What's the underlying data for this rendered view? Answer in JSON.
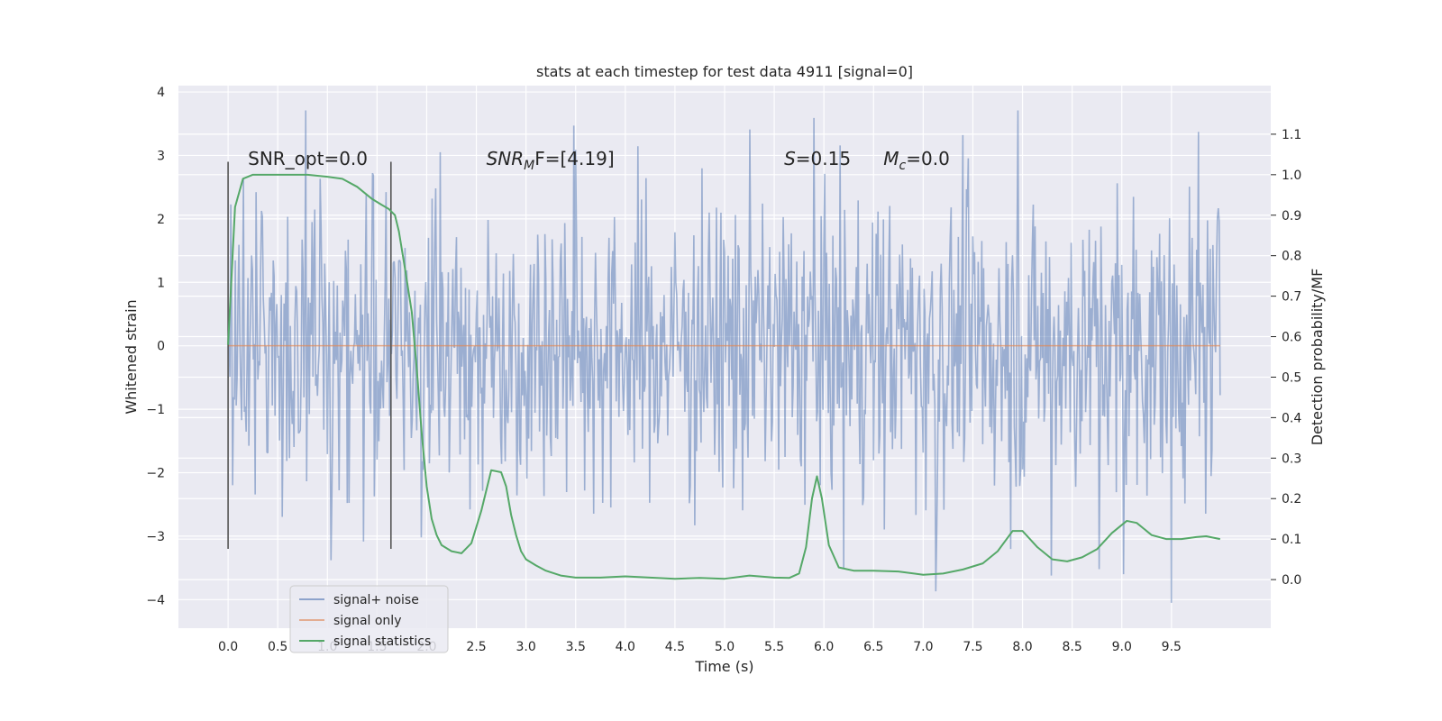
{
  "chart_data": {
    "type": "line",
    "title": "stats at each timestep for test data 4911 [signal=0]",
    "xlabel": "Time (s)",
    "ylabel": "Whitened strain",
    "y2label": "Detection probability/MF",
    "xlim": [
      -0.5,
      10.5
    ],
    "ylim": [
      -4.45,
      4.1
    ],
    "y2lim": [
      -0.12,
      1.22
    ],
    "x_ticks": [
      0.0,
      0.5,
      1.0,
      1.5,
      2.0,
      2.5,
      3.0,
      3.5,
      4.0,
      4.5,
      5.0,
      5.5,
      6.0,
      6.5,
      7.0,
      7.5,
      8.0,
      8.5,
      9.0,
      9.5
    ],
    "x_tick_labels": [
      "0.0",
      "0.5",
      "1.0",
      "1.5",
      "2.0",
      "2.5",
      "3.0",
      "3.5",
      "4.0",
      "4.5",
      "5.0",
      "5.5",
      "6.0",
      "6.5",
      "7.0",
      "7.5",
      "8.0",
      "8.5",
      "9.0",
      "9.5"
    ],
    "y_ticks": [
      -4,
      -3,
      -2,
      -1,
      0,
      1,
      2,
      3,
      4
    ],
    "y_tick_labels": [
      "−4",
      "−3",
      "−2",
      "−1",
      "0",
      "1",
      "2",
      "3",
      "4"
    ],
    "y2_ticks": [
      0.0,
      0.1,
      0.2,
      0.3,
      0.4,
      0.5,
      0.6,
      0.7,
      0.8,
      0.9,
      1.0,
      1.1
    ],
    "y2_tick_labels": [
      "0.0",
      "0.1",
      "0.2",
      "0.3",
      "0.4",
      "0.5",
      "0.6",
      "0.7",
      "0.8",
      "0.9",
      "1.0",
      "1.1"
    ],
    "grid": true,
    "background": "#eaeaf2",
    "legend": {
      "placement": "lower-left",
      "entries": [
        {
          "label": "signal+ noise",
          "color": "#4c72b0"
        },
        {
          "label": "signal only",
          "color": "#dd8452"
        },
        {
          "label": "signal statistics",
          "color": "#55a868"
        }
      ]
    },
    "series": [
      {
        "name": "signal+ noise",
        "color": "#4c72b0",
        "alpha": 0.5,
        "kind": "noise",
        "x_range": [
          0.0,
          9.99
        ],
        "typical_range": [
          -1.8,
          1.8
        ],
        "peaks_max": [
          3.71,
          3.47,
          3.41,
          3.59,
          3.32,
          3.71,
          3.37
        ],
        "peaks_max_x": [
          0.78,
          3.48,
          5.25,
          5.9,
          7.4,
          7.95,
          9.77
        ],
        "peaks_min": [
          -3.38,
          -3.52,
          -3.87,
          -3.62,
          -3.52,
          -3.6,
          -4.05
        ],
        "peaks_min_x": [
          1.04,
          6.2,
          7.13,
          8.29,
          8.77,
          9.02,
          9.5
        ]
      },
      {
        "name": "signal only",
        "color": "#dd8452",
        "x": [
          0.0,
          9.99
        ],
        "y": [
          0.0,
          0.0
        ]
      },
      {
        "name": "signal statistics",
        "color": "#55a868",
        "axis": "right",
        "x": [
          0.0,
          0.07,
          0.15,
          0.25,
          0.4,
          0.6,
          0.8,
          1.0,
          1.15,
          1.3,
          1.45,
          1.55,
          1.62,
          1.68,
          1.72,
          1.78,
          1.85,
          1.9,
          1.95,
          2.0,
          2.05,
          2.1,
          2.15,
          2.25,
          2.35,
          2.45,
          2.55,
          2.65,
          2.75,
          2.8,
          2.85,
          2.9,
          2.95,
          3.0,
          3.1,
          3.2,
          3.35,
          3.5,
          3.75,
          4.0,
          4.25,
          4.5,
          4.75,
          5.0,
          5.25,
          5.5,
          5.65,
          5.75,
          5.82,
          5.88,
          5.93,
          5.98,
          6.05,
          6.15,
          6.3,
          6.5,
          6.75,
          7.0,
          7.2,
          7.4,
          7.6,
          7.75,
          7.9,
          8.0,
          8.15,
          8.3,
          8.45,
          8.6,
          8.75,
          8.9,
          9.05,
          9.15,
          9.3,
          9.45,
          9.6,
          9.75,
          9.85,
          9.99
        ],
        "y": [
          0.58,
          0.92,
          0.99,
          1.0,
          1.0,
          1.0,
          1.0,
          0.995,
          0.99,
          0.97,
          0.94,
          0.925,
          0.915,
          0.9,
          0.86,
          0.77,
          0.66,
          0.52,
          0.36,
          0.23,
          0.15,
          0.11,
          0.085,
          0.07,
          0.065,
          0.09,
          0.17,
          0.27,
          0.265,
          0.23,
          0.16,
          0.11,
          0.07,
          0.05,
          0.035,
          0.022,
          0.01,
          0.005,
          0.005,
          0.008,
          0.005,
          0.002,
          0.004,
          0.002,
          0.01,
          0.005,
          0.004,
          0.015,
          0.08,
          0.2,
          0.255,
          0.2,
          0.085,
          0.03,
          0.022,
          0.022,
          0.02,
          0.012,
          0.015,
          0.025,
          0.04,
          0.07,
          0.12,
          0.12,
          0.08,
          0.05,
          0.045,
          0.055,
          0.075,
          0.115,
          0.145,
          0.14,
          0.11,
          0.1,
          0.1,
          0.105,
          0.107,
          0.1
        ]
      }
    ],
    "markers": {
      "color": "#555555",
      "x": [
        0.0,
        1.64
      ],
      "y_range": [
        -3.2,
        2.9
      ]
    },
    "annotations": [
      {
        "text": "SNR_opt=0.0",
        "x": 0.2,
        "y": 2.95,
        "italic_parts": []
      },
      {
        "text": "SNR_MF=[4.19]",
        "x": 2.6,
        "y": 2.95,
        "main": "SNR",
        "sub": "M",
        "tail": "F=[4.19]"
      },
      {
        "text": "S=0.15",
        "x": 5.6,
        "y": 2.95,
        "main": "S",
        "tail": "=0.15"
      },
      {
        "text": "M_c=0.0",
        "x": 6.6,
        "y": 2.95,
        "main": "M",
        "sub": "c",
        "tail": "=0.0"
      }
    ]
  }
}
